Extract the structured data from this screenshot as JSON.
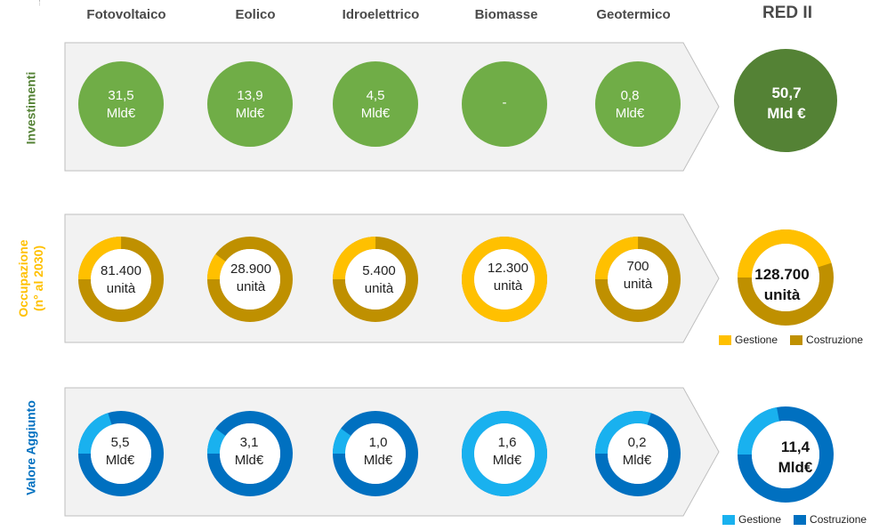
{
  "headers": [
    "Fotovoltaico",
    "Eolico",
    "Idroelettrico",
    "Biomasse",
    "Geotermico"
  ],
  "red_header": "RED II",
  "colors": {
    "green": "#70ad47",
    "dark_green": "#548235",
    "yellow": "#ffc000",
    "gold": "#bf9000",
    "light_blue": "#19b1ef",
    "blue": "#0070c0",
    "banner": "#f2f2f2",
    "banner_border": "#bfbfbf"
  },
  "rows": {
    "investimenti": {
      "label": "Investimenti",
      "items": [
        {
          "value": "31,5",
          "unit": "Mld€"
        },
        {
          "value": "13,9",
          "unit": "Mld€"
        },
        {
          "value": "4,5",
          "unit": "Mld€"
        },
        {
          "value": "-",
          "unit": ""
        },
        {
          "value": "0,8",
          "unit": "Mld€"
        }
      ],
      "total": {
        "value": "50,7",
        "unit": "Mld €"
      }
    },
    "occupazione": {
      "label_line1": "Occupazione",
      "label_line2": "(n° al 2030)",
      "items": [
        {
          "value": "81.400",
          "unit": "unità"
        },
        {
          "value": "28.900",
          "unit": "unità"
        },
        {
          "value": "5.400",
          "unit": "unità"
        },
        {
          "value": "12.300",
          "unit": "unità"
        },
        {
          "value": "700",
          "unit": "unità"
        }
      ],
      "total": {
        "value": "128.700",
        "unit": "unità"
      },
      "legend": [
        "Gestione",
        "Costruzione"
      ]
    },
    "valore": {
      "label": "Valore Aggiunto",
      "items": [
        {
          "value": "5,5",
          "unit": "Mld€"
        },
        {
          "value": "3,1",
          "unit": "Mld€"
        },
        {
          "value": "1,0",
          "unit": "Mld€"
        },
        {
          "value": "1,6",
          "unit": "Mld€"
        },
        {
          "value": "0,2",
          "unit": "Mld€"
        }
      ],
      "total": {
        "value": "11,4",
        "unit": "Mld€"
      },
      "legend": [
        "Gestione",
        "Costruzione"
      ]
    }
  },
  "chart_data": [
    {
      "type": "pie",
      "title": "Occupazione (n° al 2030)",
      "categories": [
        "Fotovoltaico",
        "Eolico",
        "Idroelettrico",
        "Biomasse",
        "Geotermico",
        "RED II"
      ],
      "series": [
        {
          "name": "Gestione",
          "share": [
            0.25,
            0.1,
            0.25,
            1.0,
            0.25,
            0.45
          ]
        },
        {
          "name": "Costruzione",
          "share": [
            0.75,
            0.9,
            0.75,
            0.0,
            0.75,
            0.55
          ]
        }
      ]
    },
    {
      "type": "pie",
      "title": "Valore Aggiunto",
      "categories": [
        "Fotovoltaico",
        "Eolico",
        "Idroelettrico",
        "Biomasse",
        "Geotermico",
        "RED II"
      ],
      "series": [
        {
          "name": "Gestione",
          "share": [
            0.2,
            0.1,
            0.1,
            1.0,
            0.3,
            0.22
          ]
        },
        {
          "name": "Costruzione",
          "share": [
            0.8,
            0.9,
            0.9,
            0.0,
            0.7,
            0.78
          ]
        }
      ]
    }
  ]
}
